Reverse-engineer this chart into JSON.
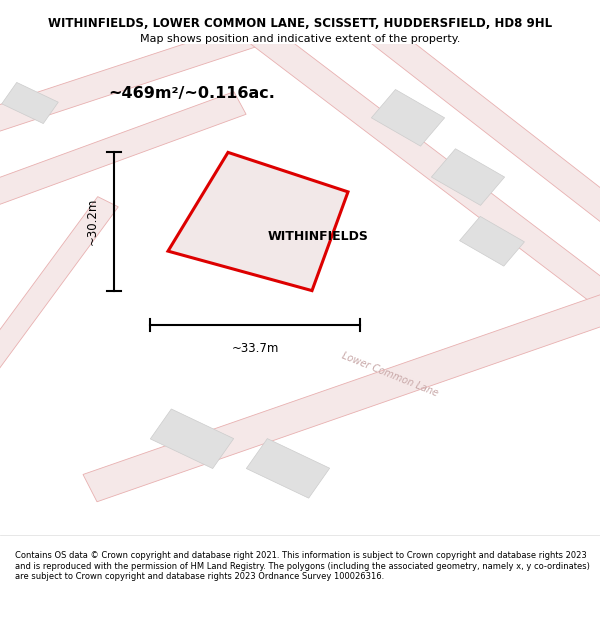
{
  "title_line1": "WITHINFIELDS, LOWER COMMON LANE, SCISSETT, HUDDERSFIELD, HD8 9HL",
  "title_line2": "Map shows position and indicative extent of the property.",
  "area_label": "~469m²/~0.116ac.",
  "property_name": "WITHINFIELDS",
  "dim_width": "~33.7m",
  "dim_height": "~30.2m",
  "road_label": "Lower Common Lane",
  "footer_text": "Contains OS data © Crown copyright and database right 2021. This information is subject to Crown copyright and database rights 2023 and is reproduced with the permission of HM Land Registry. The polygons (including the associated geometry, namely x, y co-ordinates) are subject to Crown copyright and database rights 2023 Ordnance Survey 100026316.",
  "bg_color": "#ffffff",
  "plot_fill": "#f2e8e8",
  "plot_edge": "#dd0000",
  "building_fill": "#e0e0e0",
  "building_edge": "#cccccc",
  "title_color": "#000000",
  "footer_color": "#000000",
  "road_fill_color": "#f5e8e8",
  "road_line_color": "#e8b0b0",
  "road_label_color": "#c8a8a8"
}
